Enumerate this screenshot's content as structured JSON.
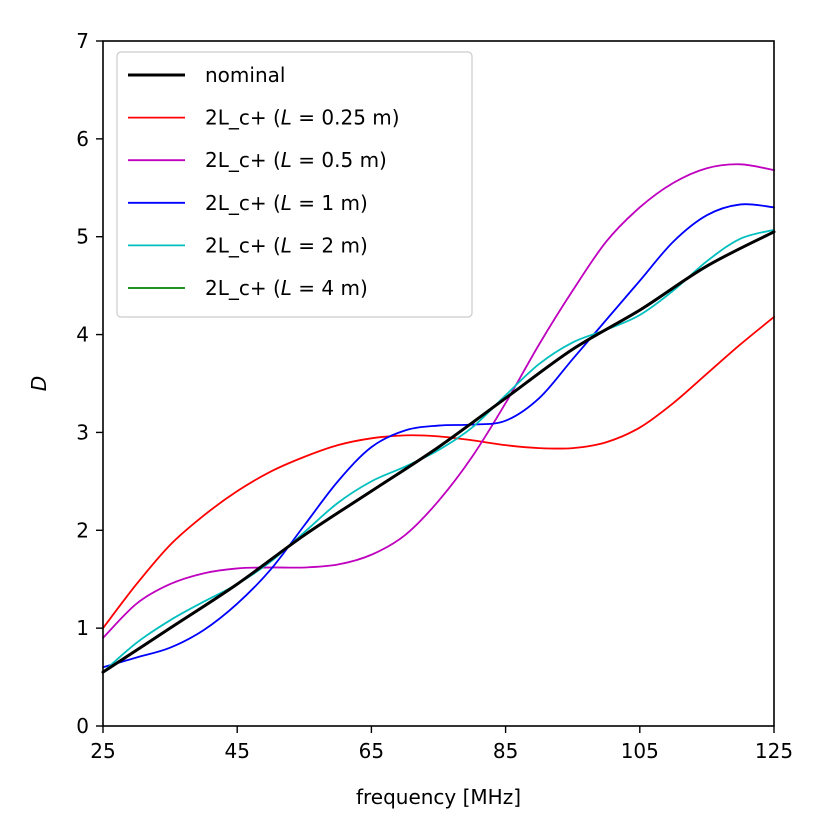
{
  "chart_data": {
    "type": "line",
    "title": "",
    "xlabel": "frequency [MHz]",
    "ylabel": "D",
    "xlim": [
      25,
      125
    ],
    "ylim": [
      0,
      7
    ],
    "xticks": [
      25,
      45,
      65,
      85,
      105,
      125
    ],
    "yticks": [
      0,
      1,
      2,
      3,
      4,
      5,
      6,
      7
    ],
    "grid": false,
    "legend_position": "top-left",
    "series": [
      {
        "name": "nominal",
        "color": "#000000",
        "linewidth": 3,
        "x": [
          25,
          35,
          45,
          55,
          65,
          75,
          85,
          95,
          105,
          115,
          125
        ],
        "y": [
          0.55,
          1.0,
          1.45,
          1.95,
          2.4,
          2.85,
          3.35,
          3.85,
          4.25,
          4.7,
          5.05
        ]
      },
      {
        "name": "2L_c+ (L = 0.25 m)",
        "name_parts": {
          "prefix": "2L_c+ (",
          "var": "L",
          "rest": " = 0.25 m)"
        },
        "color": "#ff0000",
        "linewidth": 1.8,
        "x": [
          25,
          30,
          35,
          40,
          45,
          50,
          55,
          60,
          65,
          70,
          75,
          80,
          85,
          90,
          95,
          100,
          105,
          110,
          115,
          120,
          125
        ],
        "y": [
          1.0,
          1.45,
          1.85,
          2.15,
          2.4,
          2.6,
          2.75,
          2.87,
          2.94,
          2.97,
          2.96,
          2.92,
          2.87,
          2.84,
          2.84,
          2.9,
          3.05,
          3.3,
          3.6,
          3.9,
          4.18
        ]
      },
      {
        "name": "2L_c+ (L = 0.5 m)",
        "name_parts": {
          "prefix": "2L_c+ (",
          "var": "L",
          "rest": " = 0.5 m)"
        },
        "color": "#bf00bf",
        "linewidth": 1.8,
        "x": [
          25,
          30,
          35,
          40,
          45,
          50,
          55,
          60,
          65,
          70,
          75,
          80,
          85,
          90,
          95,
          100,
          105,
          110,
          115,
          120,
          125
        ],
        "y": [
          0.9,
          1.25,
          1.45,
          1.56,
          1.61,
          1.62,
          1.62,
          1.65,
          1.75,
          1.95,
          2.3,
          2.75,
          3.3,
          3.9,
          4.45,
          4.95,
          5.3,
          5.55,
          5.7,
          5.74,
          5.68
        ]
      },
      {
        "name": "2L_c+ (L = 1 m)",
        "name_parts": {
          "prefix": "2L_c+ (",
          "var": "L",
          "rest": " = 1 m)"
        },
        "color": "#0000ff",
        "linewidth": 1.8,
        "x": [
          25,
          30,
          35,
          40,
          45,
          50,
          55,
          60,
          65,
          70,
          75,
          80,
          85,
          90,
          95,
          100,
          105,
          110,
          115,
          120,
          125
        ],
        "y": [
          0.6,
          0.7,
          0.8,
          0.98,
          1.25,
          1.6,
          2.05,
          2.5,
          2.85,
          3.02,
          3.07,
          3.08,
          3.12,
          3.35,
          3.75,
          4.15,
          4.55,
          4.95,
          5.22,
          5.33,
          5.3
        ]
      },
      {
        "name": "2L_c+ (L = 2 m)",
        "name_parts": {
          "prefix": "2L_c+ (",
          "var": "L",
          "rest": " = 2 m)"
        },
        "color": "#00bfbf",
        "linewidth": 1.8,
        "x": [
          25,
          30,
          35,
          40,
          45,
          50,
          55,
          60,
          65,
          70,
          75,
          80,
          85,
          90,
          95,
          100,
          105,
          110,
          115,
          120,
          125
        ],
        "y": [
          0.55,
          0.85,
          1.08,
          1.27,
          1.45,
          1.68,
          1.98,
          2.28,
          2.5,
          2.65,
          2.82,
          3.05,
          3.38,
          3.7,
          3.92,
          4.05,
          4.2,
          4.45,
          4.75,
          4.98,
          5.07
        ]
      },
      {
        "name": "2L_c+ (L = 4 m)",
        "name_parts": {
          "prefix": "2L_c+ (",
          "var": "L",
          "rest": " = 4 m)"
        },
        "color": "#008000",
        "linewidth": 1.8,
        "x": [
          25,
          35,
          45,
          55,
          65,
          75,
          85,
          95,
          105,
          115,
          125
        ],
        "y": [
          0.55,
          1.0,
          1.45,
          1.95,
          2.4,
          2.85,
          3.35,
          3.85,
          4.25,
          4.7,
          5.05
        ]
      }
    ]
  }
}
